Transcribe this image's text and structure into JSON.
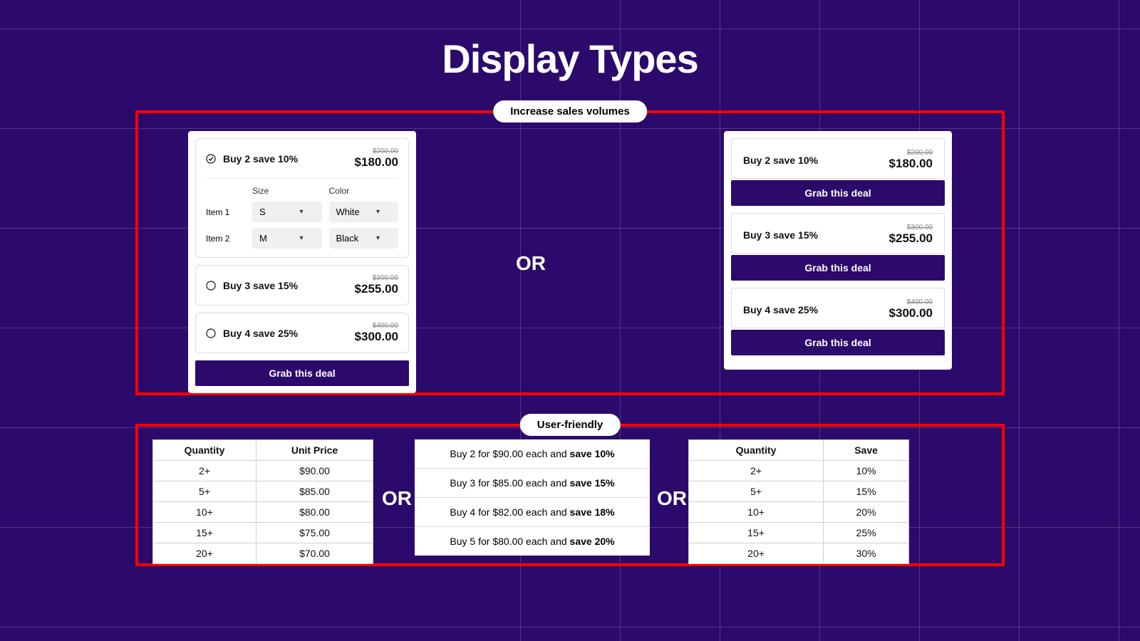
{
  "colors": {
    "background": "#2c0a6b",
    "section_border": "#ff0000",
    "grid_line": "rgba(255,255,255,0.18)",
    "card_bg": "#ffffff",
    "button_bg": "#2c0a6b",
    "button_text": "#ffffff",
    "text_dark": "#111111",
    "old_price": "#888888"
  },
  "grid": {
    "v_positions": [
      730,
      870,
      1010,
      1150,
      1290,
      1430,
      1570
    ],
    "h_positions": [
      40,
      180,
      320,
      460,
      600,
      740,
      880
    ]
  },
  "title": "Display Types",
  "pill_top": "Increase sales volumes",
  "pill_bottom": "User-friendly",
  "or_text": "OR",
  "grab_label": "Grab this deal",
  "top": {
    "left": {
      "offers": [
        {
          "label": "Buy 2 save 10%",
          "old": "$200.00",
          "price": "$180.00",
          "selected": true
        },
        {
          "label": "Buy 3 save 15%",
          "old": "$300.00",
          "price": "$255.00",
          "selected": false
        },
        {
          "label": "Buy 4 save 25%",
          "old": "$400.00",
          "price": "$300.00",
          "selected": false
        }
      ],
      "variant_headers": {
        "size": "Size",
        "color": "Color"
      },
      "items": [
        {
          "name": "Item 1",
          "size": "S",
          "color": "White"
        },
        {
          "name": "Item 2",
          "size": "M",
          "color": "Black"
        }
      ]
    },
    "right": {
      "offers": [
        {
          "label": "Buy 2 save 10%",
          "old": "$200.00",
          "price": "$180.00"
        },
        {
          "label": "Buy 3 save 15%",
          "old": "$300.00",
          "price": "$255.00"
        },
        {
          "label": "Buy 4 save 25%",
          "old": "$400.00",
          "price": "$300.00"
        }
      ]
    }
  },
  "bottom": {
    "table_left": {
      "cols": [
        "Quantity",
        "Unit Price"
      ],
      "rows": [
        [
          "2+",
          "$90.00"
        ],
        [
          "5+",
          "$85.00"
        ],
        [
          "10+",
          "$80.00"
        ],
        [
          "15+",
          "$75.00"
        ],
        [
          "20+",
          "$70.00"
        ]
      ]
    },
    "sentences": [
      {
        "pre": "Buy 2 for $90.00 each and ",
        "bold": "save 10%"
      },
      {
        "pre": "Buy 3 for $85.00 each and ",
        "bold": "save 15%"
      },
      {
        "pre": "Buy 4 for $82.00 each and ",
        "bold": "save 18%"
      },
      {
        "pre": "Buy 5 for $80.00 each and ",
        "bold": "save 20%"
      }
    ],
    "table_right": {
      "cols": [
        "Quantity",
        "Save"
      ],
      "rows": [
        [
          "2+",
          "10%"
        ],
        [
          "5+",
          "15%"
        ],
        [
          "10+",
          "20%"
        ],
        [
          "15+",
          "25%"
        ],
        [
          "20+",
          "30%"
        ]
      ]
    }
  }
}
